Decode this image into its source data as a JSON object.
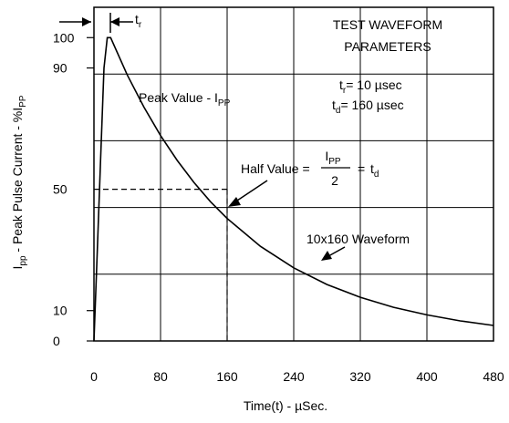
{
  "chart_data": {
    "type": "line",
    "title": "",
    "xlabel": "Time(t) - µSec.",
    "ylabel": "I_PP - Peak Pulse Current - %I_PP",
    "ylabel_parts": {
      "main": "I",
      "sub": "pp",
      "mid": " - Peak Pulse Current - %I",
      "sub2": "PP"
    },
    "xlim": [
      0,
      480
    ],
    "ylim": [
      0,
      110
    ],
    "x_ticks": [
      "0",
      "80",
      "160",
      "240",
      "320",
      "400",
      "480"
    ],
    "x_tick_values": [
      0,
      80,
      160,
      240,
      320,
      400,
      480
    ],
    "y_ticks": [
      "0",
      "10",
      "50",
      "90",
      "100"
    ],
    "y_tick_values": [
      0,
      10,
      50,
      90,
      100
    ],
    "grid": true,
    "series": [
      {
        "values": {
          "x": [
            0,
            4,
            8,
            12,
            16,
            20,
            40,
            60,
            80,
            100,
            120,
            140,
            160,
            200,
            240,
            280,
            320,
            360,
            400,
            440,
            480
          ],
          "y": [
            0,
            30,
            60,
            90,
            100,
            100,
            87.7,
            77.1,
            67.7,
            59.5,
            52.3,
            45.9,
            40.4,
            31.2,
            24.1,
            18.6,
            14.4,
            11.1,
            8.6,
            6.6,
            5.1
          ]
        }
      }
    ],
    "reference_lines": {
      "half_value_y": 50,
      "half_value_x": 160
    },
    "annotations": {
      "box_title_1": "TEST WAVEFORM",
      "box_title_2": "PARAMETERS",
      "tr_param": {
        "main": "t",
        "sub": "r",
        "rest": "= 10  µsec"
      },
      "td_param": {
        "main": "t",
        "sub": "d",
        "rest": "= 160 µsec"
      },
      "tr_marker": {
        "main": "t",
        "sub": "r"
      },
      "peak_value": {
        "text": "Peak Value - I",
        "sub": "PP"
      },
      "half_value": {
        "prefix": "Half Value =",
        "num_main": "I",
        "num_sub": "PP",
        "den": "2",
        "suffix_eq": "=",
        "td_main": "t",
        "td_sub": "d"
      },
      "waveform_label": "10x160 Waveform"
    }
  }
}
